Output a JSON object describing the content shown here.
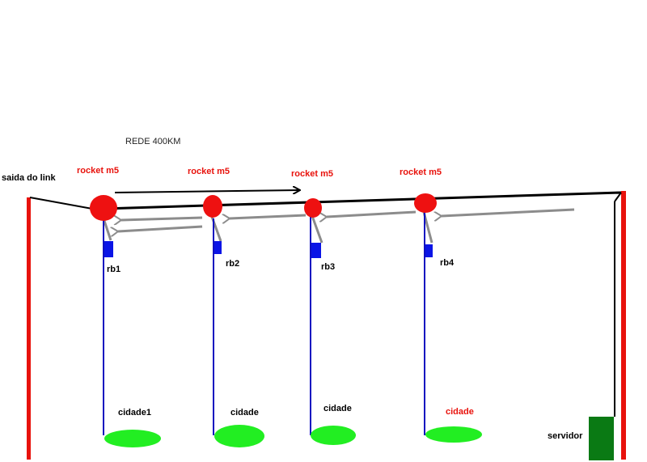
{
  "title": "REDE 400KM",
  "link_label": "saida do link",
  "rockets": [
    {
      "label": "rocket m5"
    },
    {
      "label": "rocket m5"
    },
    {
      "label": "rocket m5"
    },
    {
      "label": "rocket m5"
    }
  ],
  "routerboards": [
    {
      "label": "rb1"
    },
    {
      "label": "rb2"
    },
    {
      "label": "rb3"
    },
    {
      "label": "rb4"
    }
  ],
  "cities": [
    {
      "label": "cidade1",
      "label_color": "#000000"
    },
    {
      "label": "cidade",
      "label_color": "#000000"
    },
    {
      "label": "cidade",
      "label_color": "#000000"
    },
    {
      "label": "cidade",
      "label_color": "#e8120c"
    }
  ],
  "server_label": "servidor",
  "colors": {
    "pole": "#e8120c",
    "rocket": "#ee1111",
    "rb": "#0a14e6",
    "drop_line": "#1010c0",
    "city": "#22ee22",
    "server": "#0a7a14",
    "backbone": "#000000",
    "return_arrow": "#8c8c8c"
  }
}
